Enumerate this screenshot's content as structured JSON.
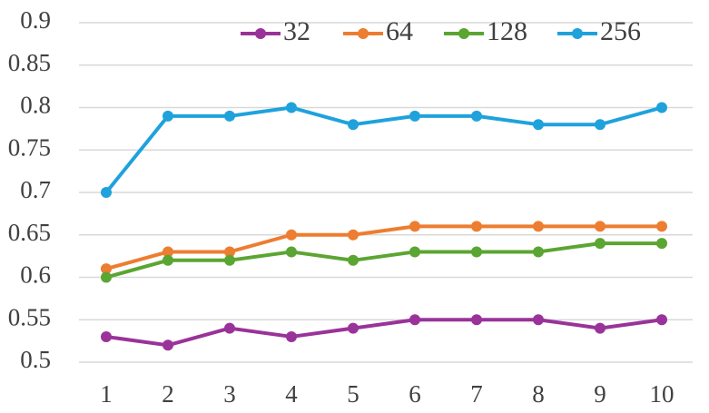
{
  "chart_data": {
    "type": "line",
    "title": "",
    "xlabel": "",
    "ylabel": "",
    "x": [
      1,
      2,
      3,
      4,
      5,
      6,
      7,
      8,
      9,
      10
    ],
    "ylim": [
      0.5,
      0.9
    ],
    "yticks": [
      "0.5",
      "0.55",
      "0.6",
      "0.65",
      "0.7",
      "0.75",
      "0.8",
      "0.85",
      "0.9"
    ],
    "grid": true,
    "legend_position": "top-right",
    "series": [
      {
        "name": "32",
        "color": "#993399",
        "values": [
          0.53,
          0.52,
          0.54,
          0.53,
          0.54,
          0.55,
          0.55,
          0.55,
          0.54,
          0.55
        ]
      },
      {
        "name": "64",
        "color": "#ED7D31",
        "values": [
          0.61,
          0.63,
          0.63,
          0.65,
          0.65,
          0.66,
          0.66,
          0.66,
          0.66,
          0.66
        ]
      },
      {
        "name": "128",
        "color": "#5BA532",
        "values": [
          0.6,
          0.62,
          0.62,
          0.63,
          0.62,
          0.63,
          0.63,
          0.63,
          0.64,
          0.64
        ]
      },
      {
        "name": "256",
        "color": "#1FA2DC",
        "values": [
          0.7,
          0.79,
          0.79,
          0.8,
          0.78,
          0.79,
          0.79,
          0.78,
          0.78,
          0.8
        ]
      }
    ]
  }
}
